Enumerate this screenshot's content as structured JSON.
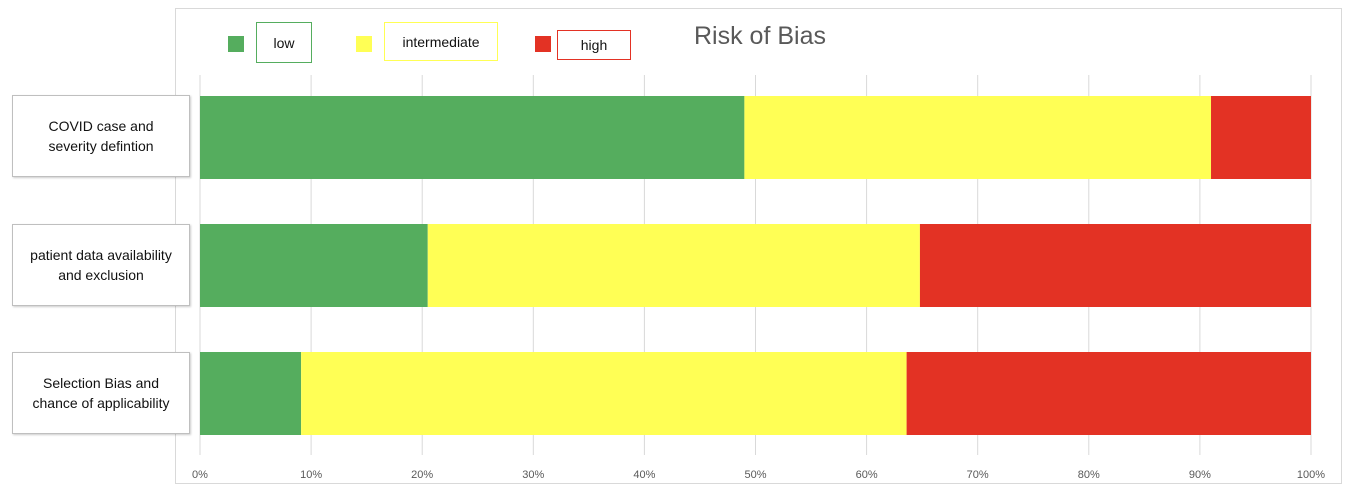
{
  "chart_data": {
    "type": "stacked-bar-horizontal",
    "title": "Risk of Bias",
    "categories": [
      "COVID case and severity defintion",
      "patient data availability and exclusion",
      "Selection Bias and chance of applicability"
    ],
    "series": [
      {
        "name": "low",
        "color": "#55ad5e",
        "values": [
          49,
          20.5,
          9.1
        ]
      },
      {
        "name": "intermediate",
        "color": "#ffff55",
        "values": [
          42,
          44.3,
          54.5
        ]
      },
      {
        "name": "high",
        "color": "#e33224",
        "values": [
          9,
          35.2,
          36.4
        ]
      }
    ],
    "xlim": [
      0,
      100
    ],
    "xticks": [
      {
        "value": 0,
        "label": "0%"
      },
      {
        "value": 10,
        "label": "10%"
      },
      {
        "value": 20,
        "label": "20%"
      },
      {
        "value": 30,
        "label": "30%"
      },
      {
        "value": 40,
        "label": "40%"
      },
      {
        "value": 50,
        "label": "50%"
      },
      {
        "value": 60,
        "label": "60%"
      },
      {
        "value": 70,
        "label": "70%"
      },
      {
        "value": 80,
        "label": "80%"
      },
      {
        "value": 90,
        "label": "90%"
      },
      {
        "value": 100,
        "label": "100%"
      }
    ],
    "grid": true
  }
}
